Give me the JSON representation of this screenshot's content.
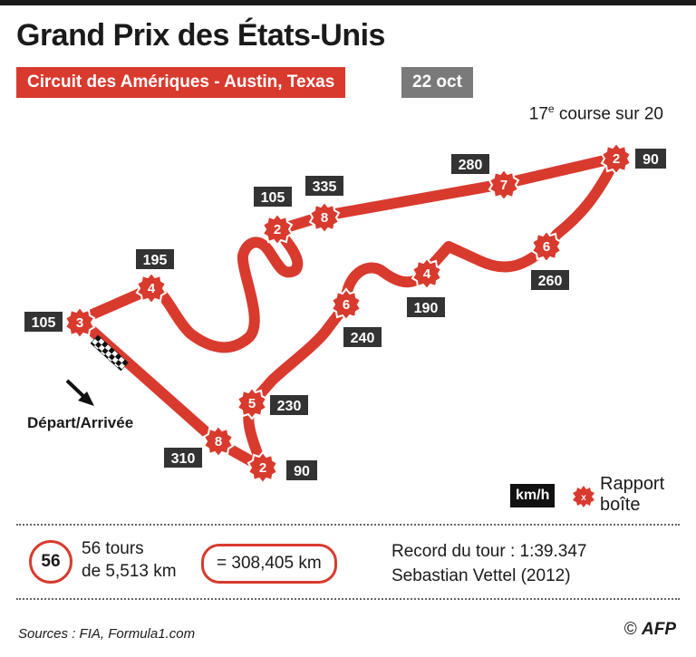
{
  "header": {
    "title": "Grand Prix des États-Unis",
    "circuit": "Circuit des Amériques - Austin, Texas",
    "date": "22 oct",
    "race_number": "17",
    "race_number_suffix": "e",
    "race_count_text": " course sur 20"
  },
  "map": {
    "start_label": "Départ/Arrivée",
    "colors": {
      "track": "#d93a2e",
      "label_bg": "#333333",
      "text": "#1a1a1a"
    },
    "speed_labels": [
      {
        "id": "s105a",
        "value": "105"
      },
      {
        "id": "s195",
        "value": "195"
      },
      {
        "id": "s105b",
        "value": "105"
      },
      {
        "id": "s335",
        "value": "335"
      },
      {
        "id": "s280",
        "value": "280"
      },
      {
        "id": "s90a",
        "value": "90"
      },
      {
        "id": "s260",
        "value": "260"
      },
      {
        "id": "s190",
        "value": "190"
      },
      {
        "id": "s240",
        "value": "240"
      },
      {
        "id": "s230",
        "value": "230"
      },
      {
        "id": "s90b",
        "value": "90"
      },
      {
        "id": "s310",
        "value": "310"
      }
    ],
    "gears": [
      {
        "id": "g3",
        "value": "3"
      },
      {
        "id": "g4a",
        "value": "4"
      },
      {
        "id": "g2a",
        "value": "2"
      },
      {
        "id": "g8a",
        "value": "8"
      },
      {
        "id": "g7",
        "value": "7"
      },
      {
        "id": "g2b",
        "value": "2"
      },
      {
        "id": "g6a",
        "value": "6"
      },
      {
        "id": "g4b",
        "value": "4"
      },
      {
        "id": "g6b",
        "value": "6"
      },
      {
        "id": "g5",
        "value": "5"
      },
      {
        "id": "g2c",
        "value": "2"
      },
      {
        "id": "g8b",
        "value": "8"
      }
    ]
  },
  "legend": {
    "unit": "km/h",
    "gear_label_line1": "Rapport",
    "gear_label_line2": "boîte"
  },
  "stats": {
    "laps": "56",
    "laps_line1": "56 tours",
    "laps_line2": "de 5,513 km",
    "distance": "= 308,405 km",
    "record_line1": "Record du tour : 1:39.347",
    "record_line2": "Sebastian Vettel (2012)"
  },
  "footer": {
    "sources": "Sources : FIA, Formula1.com",
    "copyright_symbol": "©",
    "agency": "AFP"
  }
}
